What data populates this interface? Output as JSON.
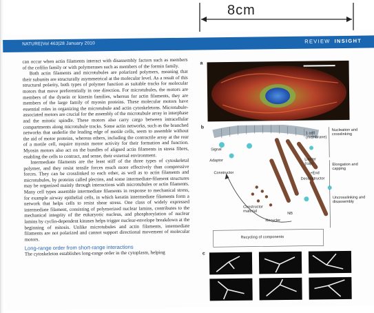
{
  "header": {
    "journal": "NATURE|Vol 463|28 January 2010",
    "section_a": "REVIEW",
    "section_b": "INSIGHT"
  },
  "measure_label": "8cm",
  "body": {
    "p1": "can occur when actin filaments interact with disassembly factors such as members of the cofilin family or with polymerases such as members of the formin family.",
    "p2": "Both actin filaments and microtubules are polarized polymers, meaning that their subunits are structurally asymmetrical at the molecular level. As a result of this structural polarity, both types of polymer function as suitable tracks for molecular motors that move preferentially in one direction. For microtubules, the motors are members of the dynein or kinesin families, whereas for actin filaments, they are members of the large family of myosin proteins. These molecular motors have essential roles in organizing the microtubule and actin cytoskeletons. Microtubule-associated motors are crucial for the assembly of the microtubule array in interphase and the mitotic spindle. These motors also carry cargo between intracellular compartments along microtubule tracks. Some actin networks, such as the branched networks that underlie the leading edge of motile cells, seem to assemble without the aid of motor proteins, whereas others, including the contractile array at the rear of a motile cell, require myosin motor activity for their formation and function. Myosin motors also act on the bundles of aligned actin filaments in stress fibres, enabling the cells to contract, and sense, their external environment.",
    "p3": "Intermediate filaments are the least stiff of the three types of cytoskeletal polymer, and they resist tensile forces much more effectively than compressive forces. They can be crosslinked to each other, as well as to actin filaments and microtubules, by proteins called plectins, and some intermediate-filament structures may be organized mainly through interactions with microtubules or actin filaments. Many cell types assemble intermediate filaments in response to mechanical stress, for example airway epithelial cells, in which keratin intermediate filaments form a network that helps cells to resist shear stress. One class of widely expressed intermediate filament, consisting of polymerized nuclear lamins, contributes to the mechanical integrity of the eukaryotic nucleus, and phosphorylation of nuclear lamins by cyclin-dependent kinases helps trigger nuclear-envelope breakdown at the beginning of mitosis. Unlike microtubules and actin filaments, intermediate filaments are not polarized and cannot support directional movement of molecular motors.",
    "subheading": "Long-range order from short-range interactions",
    "p4": "The cytoskeleton establishes long-range order in the cytoplasm, helping"
  },
  "figure": {
    "panel_labels": [
      "a",
      "b",
      "c"
    ],
    "b_labels": {
      "signal": "Signal",
      "adaptor": "Adaptor",
      "constructor": "Constructor",
      "nucleator": "1 cell\n(membrane)",
      "limiter": "Limiter\n(cap)",
      "deconstructor": "Deconstructor",
      "constructor_material": "Constructor\nmaterial",
      "recycler": "Recycler",
      "nb": "NB",
      "plus_end": "+End",
      "recycling": "Recycling of components"
    },
    "b_side_labels": {
      "nucleation": "Nucleation and crosslinking",
      "elongation": "Elongation and capping",
      "unbundling": "Uncrosslinking and disassembly"
    }
  },
  "colors": {
    "header_blue": "#1b66b1",
    "subhead_blue": "#2b66b4",
    "membrane_grey": "#a9b6bf",
    "filament_brown": "#7a4a33",
    "cyan_protein": "#57c6cf"
  }
}
